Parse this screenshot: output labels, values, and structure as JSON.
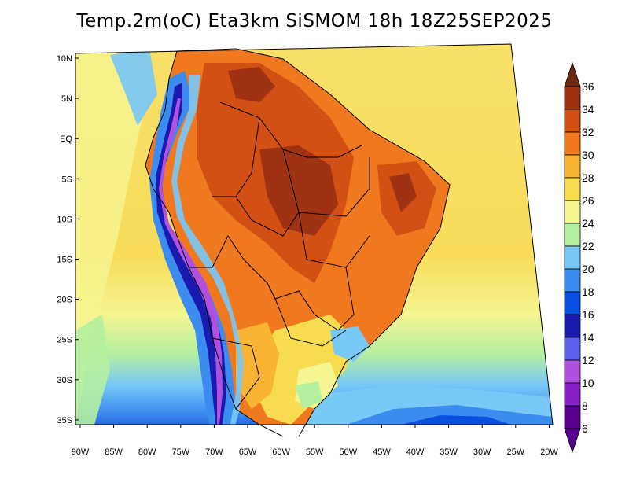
{
  "title": "Temp.2m(oC) Eta3km SiSMOM 18h 18Z25SEP2025",
  "map": {
    "lat_labels": [
      "10N",
      "5N",
      "EQ",
      "5S",
      "10S",
      "15S",
      "20S",
      "25S",
      "30S",
      "35S"
    ],
    "lon_labels": [
      "90W",
      "85W",
      "80W",
      "75W",
      "70W",
      "65W",
      "60W",
      "55W",
      "50W",
      "45W",
      "40W",
      "35W",
      "30W",
      "25W",
      "20W"
    ]
  },
  "colorbar": {
    "levels": [
      "6",
      "8",
      "10",
      "12",
      "14",
      "16",
      "18",
      "20",
      "22",
      "24",
      "26",
      "28",
      "30",
      "32",
      "34",
      "36"
    ],
    "colors": [
      "#5a0090",
      "#8a20c8",
      "#b050e0",
      "#6060f0",
      "#1a1ab0",
      "#0a50e0",
      "#3c8cf0",
      "#78c8f8",
      "#b4f0a0",
      "#f5f591",
      "#f8dc50",
      "#f8b432",
      "#f0781e",
      "#d25014",
      "#a03214",
      "#6e2810"
    ]
  }
}
